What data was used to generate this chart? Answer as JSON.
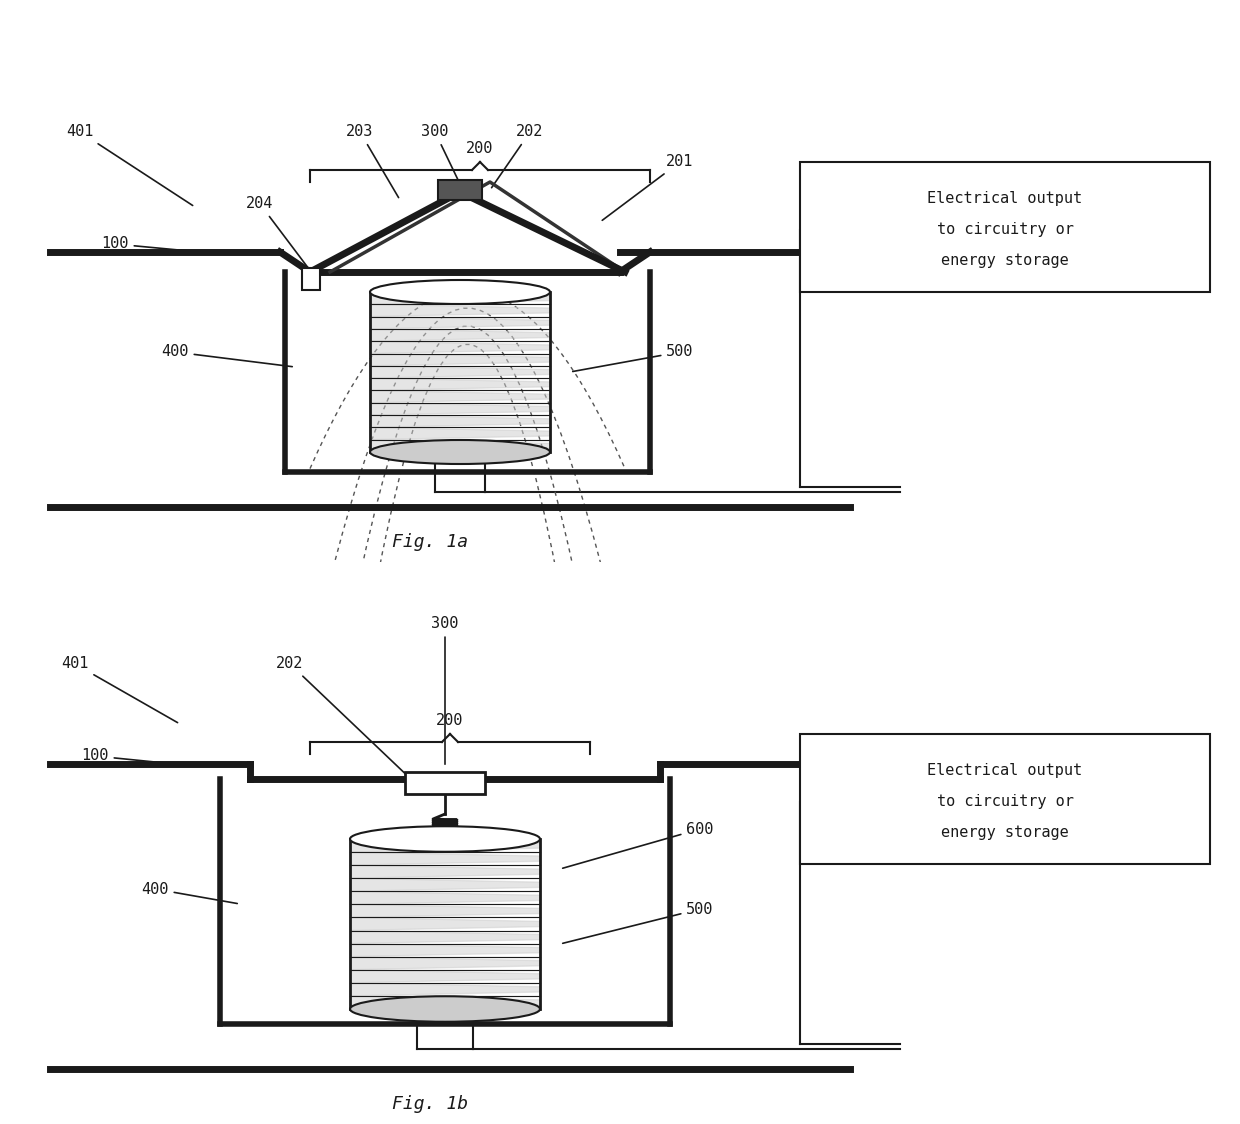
{
  "bg_color": "#ffffff",
  "line_color": "#1a1a1a",
  "thick_lw": 4.0,
  "thin_lw": 1.5,
  "fig1a_title": "Fig. 1a",
  "fig1b_title": "Fig. 1b",
  "elec_box_text": [
    "Electrical output",
    "to circuitry or",
    "energy storage"
  ]
}
